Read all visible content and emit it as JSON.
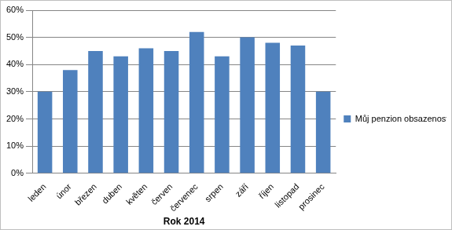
{
  "chart_data": {
    "type": "bar",
    "categories": [
      "leden",
      "únor",
      "březen",
      "duben",
      "květen",
      "červen",
      "červenec",
      "srpen",
      "září",
      "říjen",
      "listopad",
      "prosinec"
    ],
    "series": [
      {
        "name": "Můj penzion obsazenost v %",
        "color": "#4f81bd",
        "values": [
          30,
          38,
          45,
          43,
          46,
          45,
          52,
          43,
          50,
          48,
          47,
          30
        ]
      }
    ],
    "x_label": "Rok 2014",
    "ylim": [
      0,
      60
    ],
    "yticks": [
      {
        "value": 0,
        "label": "0%"
      },
      {
        "value": 10,
        "label": "10%"
      },
      {
        "value": 20,
        "label": "20%"
      },
      {
        "value": 30,
        "label": "30%"
      },
      {
        "value": 40,
        "label": "40%"
      },
      {
        "value": 50,
        "label": "50%"
      },
      {
        "value": 60,
        "label": "60%"
      }
    ],
    "grid": true,
    "legend": "right"
  }
}
